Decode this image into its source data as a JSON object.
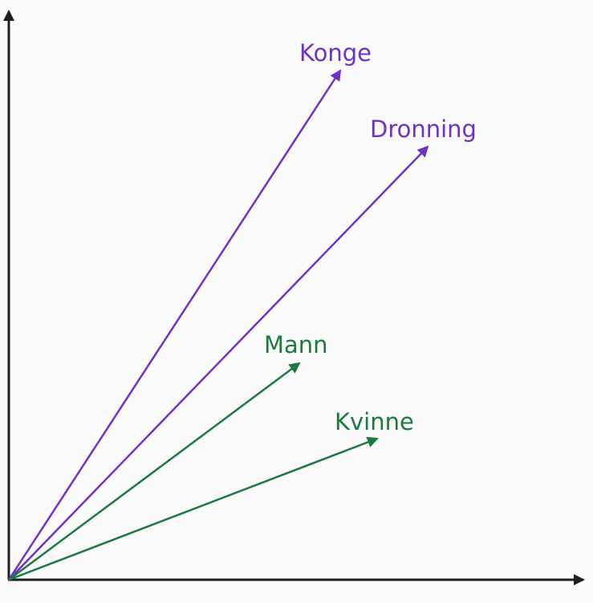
{
  "diagram": {
    "axis_color": "#1f1f1f",
    "vectors": [
      {
        "label": "Konge",
        "color": "#6e32c8"
      },
      {
        "label": "Dronning",
        "color": "#6e32c8"
      },
      {
        "label": "Mann",
        "color": "#1a7a41"
      },
      {
        "label": "Kvinne",
        "color": "#1a7a41"
      }
    ]
  }
}
